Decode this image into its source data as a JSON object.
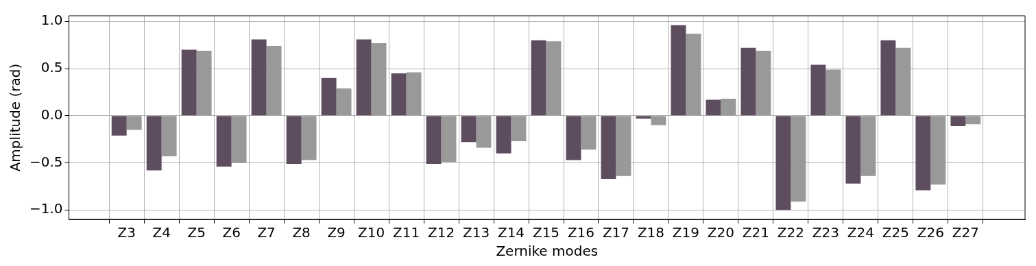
{
  "chart_data": {
    "type": "bar",
    "xlabel": "Zernike modes",
    "ylabel": "Amplitude (rad)",
    "categories": [
      "Z3",
      "Z4",
      "Z5",
      "Z6",
      "Z7",
      "Z8",
      "Z9",
      "Z10",
      "Z11",
      "Z12",
      "Z13",
      "Z14",
      "Z15",
      "Z16",
      "Z17",
      "Z18",
      "Z19",
      "Z20",
      "Z21",
      "Z22",
      "Z23",
      "Z24",
      "Z25",
      "Z26",
      "Z27"
    ],
    "series": [
      {
        "color": "#5e4d5f",
        "values": [
          -0.21,
          -0.58,
          0.7,
          -0.54,
          0.81,
          -0.51,
          0.4,
          0.81,
          0.45,
          -0.51,
          -0.28,
          -0.4,
          0.8,
          -0.47,
          -0.67,
          -0.03,
          0.96,
          0.17,
          0.72,
          -1.0,
          0.54,
          -0.72,
          0.8,
          -0.79,
          -0.11
        ]
      },
      {
        "color": "#999999",
        "values": [
          -0.15,
          -0.43,
          0.69,
          -0.5,
          0.74,
          -0.47,
          0.29,
          0.77,
          0.46,
          -0.49,
          -0.34,
          -0.27,
          0.79,
          -0.36,
          -0.64,
          -0.1,
          0.87,
          0.18,
          0.69,
          -0.91,
          0.49,
          -0.64,
          0.72,
          -0.73,
          -0.09
        ]
      }
    ],
    "ylim": [
      -1.1,
      1.06
    ],
    "yticks": [
      {
        "value": -1,
        "label": "−1.0"
      },
      {
        "value": -0.5,
        "label": "−0.5"
      },
      {
        "value": 0,
        "label": "0.0"
      },
      {
        "value": 0.5,
        "label": "0.5"
      },
      {
        "value": 1,
        "label": "1.0"
      }
    ],
    "grid": true,
    "legend": false
  }
}
